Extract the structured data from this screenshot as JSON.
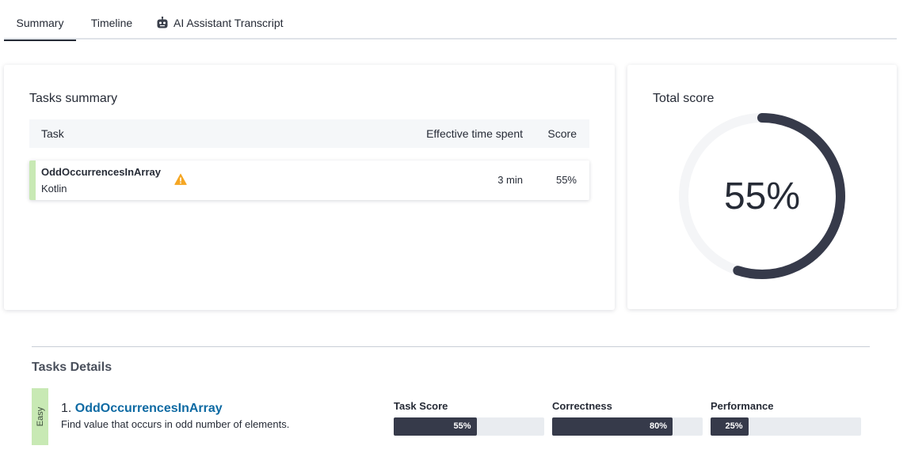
{
  "tabs": [
    {
      "label": "Summary",
      "active": true
    },
    {
      "label": "Timeline",
      "active": false
    },
    {
      "label": "AI Assistant Transcript",
      "active": false,
      "icon": "robot-icon"
    }
  ],
  "tasks_summary": {
    "title": "Tasks summary",
    "columns": {
      "task": "Task",
      "time": "Effective time spent",
      "score": "Score"
    },
    "rows": [
      {
        "name": "OddOccurrencesInArray",
        "language": "Kotlin",
        "warning_icon": "warning-icon",
        "time": "3 min",
        "score": "55%"
      }
    ]
  },
  "total_score": {
    "title": "Total score",
    "value": 55,
    "label": "55%"
  },
  "tasks_details": {
    "title": "Tasks Details",
    "items": [
      {
        "difficulty": "Easy",
        "number": "1.",
        "name": "OddOccurrencesInArray",
        "description": "Find value that occurs in odd number of elements.",
        "metrics": [
          {
            "label": "Task Score",
            "value": 55,
            "text": "55%"
          },
          {
            "label": "Correctness",
            "value": 80,
            "text": "80%"
          },
          {
            "label": "Performance",
            "value": 25,
            "text": "25%"
          }
        ]
      }
    ]
  },
  "colors": {
    "accent_dark": "#363a4a",
    "easy_green": "#c8e9b4",
    "link_blue": "#0e6aa3",
    "warning": "#f5a623"
  }
}
